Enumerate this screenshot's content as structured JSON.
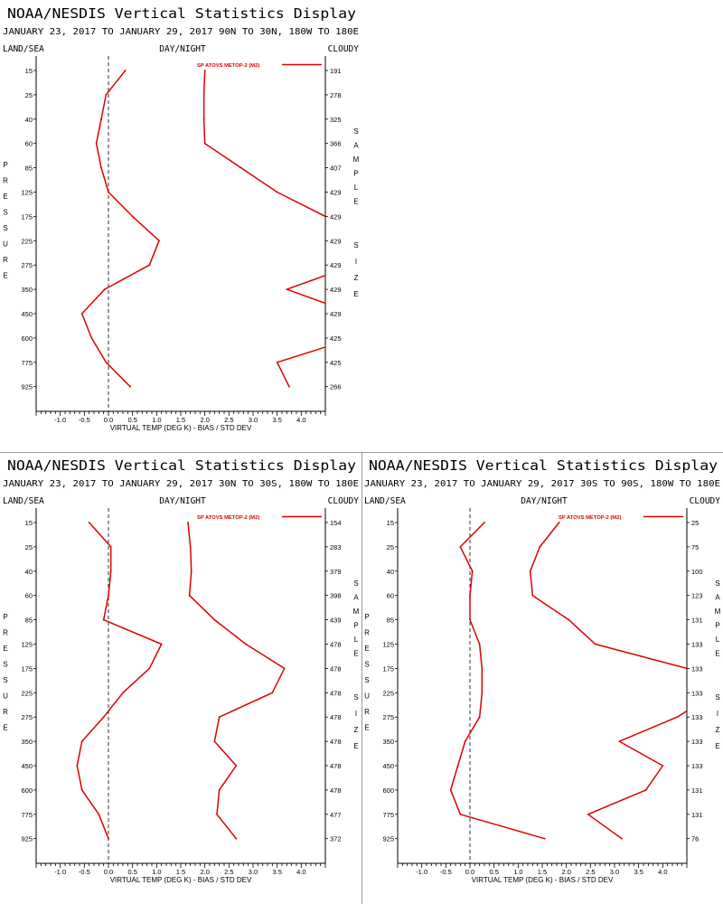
{
  "chart_data": [
    {
      "type": "line",
      "title": "NOAA/NESDIS Vertical Statistics Display",
      "subtitle": "JANUARY 23, 2017 TO JANUARY 29, 2017  90N TO 30N, 180W TO 180E",
      "top_labels": {
        "left": "LAND/SEA",
        "center": "DAY/NIGHT",
        "right": "CLOUDY"
      },
      "xlabel": "VIRTUAL TEMP (DEG K) - BIAS / STD DEV",
      "ylabel_left": "PRESSURE",
      "ylabel_right": "SAMPLE SIZE",
      "xlim": [
        -1.5,
        4.5
      ],
      "x_ticks": [
        "-1.0",
        "-0.5",
        "0.0",
        "0.5",
        "1.0",
        "1.5",
        "2.0",
        "2.5",
        "3.0",
        "3.5",
        "4.0"
      ],
      "pressure_levels": [
        "15",
        "25",
        "40",
        "60",
        "85",
        "125",
        "175",
        "225",
        "275",
        "350",
        "450",
        "600",
        "775",
        "925"
      ],
      "sample_sizes": [
        "191",
        "278",
        "325",
        "366",
        "407",
        "429",
        "429",
        "429",
        "429",
        "429",
        "429",
        "425",
        "425",
        "266"
      ],
      "legend": "SP ATOVS METOP-2 (M2)",
      "legend_position": "top-right",
      "line_color": "#dd0000",
      "series": [
        {
          "role": "bias",
          "values": [
            0.35,
            -0.05,
            -0.15,
            -0.25,
            -0.15,
            0.0,
            0.5,
            1.05,
            0.85,
            -0.08,
            -0.55,
            -0.35,
            -0.05,
            0.45
          ]
        },
        {
          "role": "std_dev",
          "values": [
            2.0,
            1.98,
            1.98,
            2.0,
            2.75,
            3.5,
            4.5,
            null,
            null,
            3.7,
            null,
            null,
            3.5,
            3.75
          ]
        }
      ]
    },
    {
      "type": "line",
      "title": "NOAA/NESDIS Vertical Statistics Display",
      "subtitle": "JANUARY 23, 2017 TO JANUARY 29, 2017  30N TO 30S, 180W TO 180E",
      "top_labels": {
        "left": "LAND/SEA",
        "center": "DAY/NIGHT",
        "right": "CLOUDY"
      },
      "xlabel": "VIRTUAL TEMP (DEG K) - BIAS / STD DEV",
      "ylabel_left": "PRESSURE",
      "ylabel_right": "SAMPLE SIZE",
      "xlim": [
        -1.5,
        4.5
      ],
      "x_ticks": [
        "-1.0",
        "-0.5",
        "0.0",
        "0.5",
        "1.0",
        "1.5",
        "2.0",
        "2.5",
        "3.0",
        "3.5",
        "4.0"
      ],
      "pressure_levels": [
        "15",
        "25",
        "40",
        "60",
        "85",
        "125",
        "175",
        "225",
        "275",
        "350",
        "450",
        "600",
        "775",
        "925"
      ],
      "sample_sizes": [
        "154",
        "283",
        "379",
        "398",
        "439",
        "478",
        "478",
        "478",
        "478",
        "478",
        "478",
        "478",
        "477",
        "372"
      ],
      "legend": "SP ATOVS METOP-2 (M2)",
      "legend_position": "top-right",
      "line_color": "#dd0000",
      "series": [
        {
          "role": "bias",
          "values": [
            -0.4,
            0.05,
            0.05,
            0.0,
            -0.1,
            1.1,
            0.85,
            0.3,
            -0.1,
            -0.55,
            -0.65,
            -0.55,
            -0.2,
            0.0
          ]
        },
        {
          "role": "std_dev",
          "values": [
            1.65,
            1.7,
            1.72,
            1.68,
            2.2,
            2.85,
            3.65,
            3.4,
            2.3,
            2.2,
            2.65,
            2.3,
            2.25,
            2.65
          ]
        }
      ]
    },
    {
      "type": "line",
      "title": "NOAA/NESDIS Vertical Statistics Display",
      "subtitle": "JANUARY 23, 2017 TO JANUARY 29, 2017  30S TO 90S, 180W TO 180E",
      "top_labels": {
        "left": "LAND/SEA",
        "center": "DAY/NIGHT",
        "right": "CLOUDY"
      },
      "xlabel": "VIRTUAL TEMP (DEG K) - BIAS / STD DEV",
      "ylabel_left": "PRESSURE",
      "ylabel_right": "SAMPLE SIZE",
      "xlim": [
        -1.5,
        4.5
      ],
      "x_ticks": [
        "-1.0",
        "-0.5",
        "0.0",
        "0.5",
        "1.0",
        "1.5",
        "2.0",
        "2.5",
        "3.0",
        "3.5",
        "4.0"
      ],
      "pressure_levels": [
        "15",
        "25",
        "40",
        "60",
        "85",
        "125",
        "175",
        "225",
        "275",
        "350",
        "450",
        "600",
        "775",
        "925"
      ],
      "sample_sizes": [
        "25",
        "75",
        "100",
        "123",
        "131",
        "133",
        "133",
        "133",
        "133",
        "133",
        "133",
        "131",
        "131",
        "76"
      ],
      "legend": "SP ATOVS METOP-2 (M2)",
      "legend_position": "top-right",
      "line_color": "#dd0000",
      "series": [
        {
          "role": "bias",
          "values": [
            0.3,
            -0.2,
            0.05,
            0.0,
            0.0,
            0.2,
            0.25,
            0.25,
            0.2,
            -0.1,
            -0.25,
            -0.4,
            -0.2,
            1.55
          ]
        },
        {
          "role": "std_dev",
          "values": [
            1.85,
            1.45,
            1.25,
            1.3,
            2.05,
            2.6,
            4.5,
            null,
            4.3,
            3.1,
            4.0,
            3.65,
            2.45,
            3.15
          ]
        }
      ]
    }
  ]
}
